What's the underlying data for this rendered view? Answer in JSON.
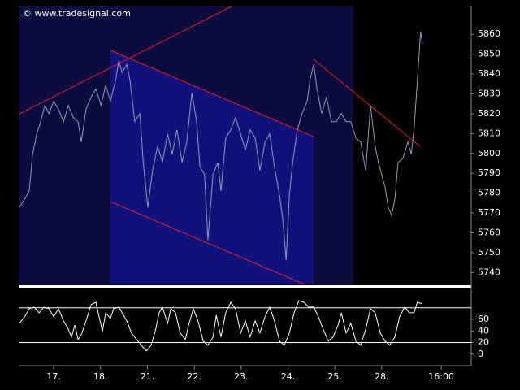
{
  "chart_data": [
    {
      "type": "line",
      "watermark": "© www.tradesignal.com",
      "xlim": [
        -0.73,
        8.91
      ],
      "ylim": [
        5734,
        5874
      ],
      "yticks": [
        5740,
        5750,
        5760,
        5770,
        5780,
        5790,
        5800,
        5810,
        5820,
        5830,
        5840,
        5850,
        5860
      ],
      "series": [
        {
          "color": "#9a9ab4",
          "x": [
            -0.73,
            -0.62,
            -0.52,
            -0.45,
            -0.36,
            -0.28,
            -0.19,
            -0.1,
            0,
            0.1,
            0.21,
            0.31,
            0.42,
            0.52,
            0.59,
            0.69,
            0.8,
            0.9,
            1.01,
            1.11,
            1.21,
            1.32,
            1.39,
            1.46,
            1.56,
            1.63,
            1.73,
            1.84,
            1.91,
            2.01,
            2.11,
            2.22,
            2.32,
            2.43,
            2.53,
            2.63,
            2.74,
            2.84,
            2.95,
            3.05,
            3.12,
            3.22,
            3.29,
            3.4,
            3.5,
            3.57,
            3.67,
            3.78,
            3.88,
            3.99,
            4.09,
            4.19,
            4.3,
            4.4,
            4.51,
            4.61,
            4.71,
            4.82,
            4.89,
            4.96,
            5.03,
            5.1,
            5.2,
            5.3,
            5.41,
            5.48,
            5.55,
            5.62,
            5.72,
            5.82,
            5.93,
            6.03,
            6.14,
            6.24,
            6.34,
            6.45,
            6.55,
            6.66,
            6.76,
            6.86,
            6.93,
            7.0,
            7.07,
            7.14,
            7.21,
            7.28,
            7.35,
            7.45,
            7.56,
            7.63,
            7.69,
            7.76,
            7.83,
            7.87
          ],
          "values": [
            5772.9,
            5777.0,
            5781.1,
            5799.6,
            5809.9,
            5816.0,
            5824.2,
            5820.1,
            5826.3,
            5822.2,
            5816.0,
            5824.2,
            5818.1,
            5816.0,
            5805.7,
            5822.2,
            5828.4,
            5832.5,
            5824.2,
            5834.5,
            5826.3,
            5836.6,
            5846.8,
            5840.7,
            5844.8,
            5836.6,
            5816.0,
            5820.1,
            5795.5,
            5772.9,
            5791.4,
            5803.7,
            5795.5,
            5809.9,
            5799.6,
            5811.9,
            5795.5,
            5805.7,
            5830.4,
            5816.0,
            5793.4,
            5789.3,
            5756.4,
            5789.3,
            5795.5,
            5781.1,
            5807.8,
            5811.9,
            5818.1,
            5809.9,
            5801.6,
            5811.9,
            5807.8,
            5791.4,
            5805.7,
            5809.9,
            5793.4,
            5779.0,
            5766.7,
            5746.2,
            5779.0,
            5795.5,
            5811.9,
            5820.1,
            5826.3,
            5838.6,
            5844.8,
            5832.5,
            5820.1,
            5828.4,
            5816.0,
            5816.0,
            5820.1,
            5816.0,
            5816.0,
            5807.8,
            5805.7,
            5791.4,
            5824.2,
            5803.7,
            5795.5,
            5789.3,
            5783.1,
            5772.9,
            5768.8,
            5777.0,
            5795.5,
            5797.5,
            5805.7,
            5799.6,
            5811.9,
            5836.6,
            5861.2,
            5855.1
          ]
        }
      ]
    },
    {
      "type": "line",
      "xlim": [
        -0.73,
        8.91
      ],
      "ylim": [
        -20,
        112
      ],
      "yticks": [
        0,
        20,
        40,
        60
      ],
      "levels": [
        20,
        80
      ],
      "xticks": [
        {
          "value": 0,
          "label": "17."
        },
        {
          "value": 1,
          "label": "18."
        },
        {
          "value": 2,
          "label": "21."
        },
        {
          "value": 3,
          "label": "22."
        },
        {
          "value": 4,
          "label": "23."
        },
        {
          "value": 5,
          "label": "24."
        },
        {
          "value": 6,
          "label": "25."
        },
        {
          "value": 7,
          "label": "28."
        },
        {
          "value": 8.27,
          "label": "16:00"
        }
      ],
      "series": [
        {
          "color": "#ffffff",
          "x": [
            -0.73,
            -0.62,
            -0.52,
            -0.42,
            -0.31,
            -0.21,
            -0.1,
            0,
            0.1,
            0.21,
            0.31,
            0.38,
            0.45,
            0.52,
            0.59,
            0.69,
            0.8,
            0.9,
            0.97,
            1.04,
            1.11,
            1.21,
            1.28,
            1.39,
            1.46,
            1.56,
            1.66,
            1.77,
            1.87,
            1.98,
            2.08,
            2.18,
            2.25,
            2.32,
            2.43,
            2.5,
            2.6,
            2.7,
            2.81,
            2.88,
            2.98,
            3.08,
            3.19,
            3.29,
            3.4,
            3.47,
            3.57,
            3.67,
            3.78,
            3.88,
            3.99,
            4.09,
            4.19,
            4.3,
            4.4,
            4.51,
            4.61,
            4.71,
            4.82,
            4.92,
            5.03,
            5.13,
            5.23,
            5.34,
            5.44,
            5.55,
            5.65,
            5.75,
            5.86,
            5.96,
            6.07,
            6.14,
            6.24,
            6.34,
            6.45,
            6.55,
            6.66,
            6.76,
            6.86,
            6.97,
            7.07,
            7.17,
            7.28,
            7.38,
            7.49,
            7.59,
            7.69,
            7.76,
            7.87
          ],
          "values": [
            53.2,
            64.4,
            78.4,
            81.2,
            71.4,
            81.2,
            78.4,
            64.4,
            78.4,
            57.4,
            43.4,
            29.4,
            50.4,
            25.2,
            33.6,
            57.4,
            85.4,
            89.6,
            64.4,
            39.2,
            71.4,
            61.6,
            78.4,
            81.2,
            71.4,
            57.4,
            36.4,
            25.2,
            15.4,
            5.6,
            15.4,
            43.4,
            71.4,
            81.2,
            53.2,
            78.4,
            71.4,
            36.4,
            25.2,
            50.4,
            78.4,
            57.4,
            22.4,
            15.4,
            29.4,
            67.2,
            29.4,
            71.4,
            89.6,
            78.4,
            36.4,
            57.4,
            29.4,
            57.4,
            36.4,
            64.4,
            81.2,
            57.4,
            22.4,
            15.4,
            36.4,
            71.4,
            92.4,
            89.6,
            81.2,
            81.2,
            64.4,
            43.4,
            22.4,
            29.4,
            50.4,
            71.4,
            36.4,
            53.2,
            22.4,
            15.4,
            43.4,
            78.4,
            71.4,
            36.4,
            22.4,
            15.4,
            29.4,
            64.4,
            81.2,
            71.4,
            71.4,
            89.6,
            86.8
          ]
        }
      ]
    }
  ]
}
